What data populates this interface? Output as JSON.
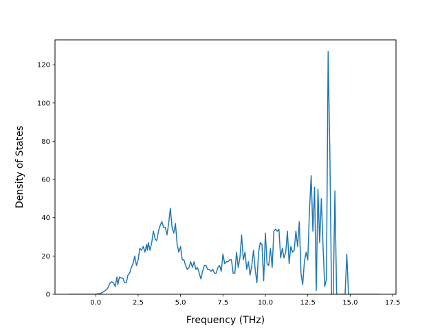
{
  "chart_data": {
    "type": "line",
    "title": "",
    "xlabel": "Frequency (THz)",
    "ylabel": "Density of States",
    "xlim": [
      -2.4,
      17.7
    ],
    "ylim": [
      0,
      133
    ],
    "xticks": [
      0.0,
      2.5,
      5.0,
      7.5,
      10.0,
      12.5,
      15.0,
      17.5
    ],
    "xtick_labels": [
      "0.0",
      "2.5",
      "5.0",
      "7.5",
      "10.0",
      "12.5",
      "15.0",
      "17.5"
    ],
    "yticks": [
      0,
      20,
      40,
      60,
      80,
      100,
      120
    ],
    "ytick_labels": [
      "0",
      "20",
      "40",
      "60",
      "80",
      "100",
      "120"
    ],
    "grid": false,
    "legend": "none",
    "color": "#1f77b4",
    "series": [
      {
        "x": [
          -1.55,
          -1.0,
          -0.5,
          0.0,
          0.3,
          0.5,
          0.7,
          0.85,
          0.95,
          1.05,
          1.15,
          1.25,
          1.3,
          1.4,
          1.5,
          1.6,
          1.7,
          1.8,
          1.9,
          2.0,
          2.1,
          2.2,
          2.3,
          2.4,
          2.5,
          2.6,
          2.7,
          2.8,
          2.9,
          3.0,
          3.05,
          3.1,
          3.2,
          3.3,
          3.4,
          3.5,
          3.6,
          3.7,
          3.8,
          3.9,
          4.0,
          4.1,
          4.2,
          4.3,
          4.4,
          4.5,
          4.6,
          4.7,
          4.8,
          4.9,
          5.0,
          5.1,
          5.2,
          5.3,
          5.4,
          5.5,
          5.6,
          5.7,
          5.8,
          5.9,
          6.0,
          6.1,
          6.2,
          6.3,
          6.4,
          6.5,
          6.6,
          6.7,
          6.8,
          6.9,
          7.0,
          7.1,
          7.2,
          7.3,
          7.4,
          7.5,
          7.6,
          7.7,
          7.8,
          7.9,
          8.0,
          8.1,
          8.2,
          8.3,
          8.4,
          8.5,
          8.6,
          8.7,
          8.8,
          8.9,
          9.0,
          9.1,
          9.2,
          9.3,
          9.4,
          9.5,
          9.6,
          9.7,
          9.8,
          9.9,
          10.0,
          10.1,
          10.2,
          10.3,
          10.4,
          10.5,
          10.6,
          10.7,
          10.8,
          10.9,
          11.0,
          11.1,
          11.2,
          11.3,
          11.4,
          11.5,
          11.6,
          11.7,
          11.8,
          11.9,
          12.0,
          12.1,
          12.2,
          12.3,
          12.4,
          12.5,
          12.6,
          12.7,
          12.8,
          12.9,
          13.0,
          13.1,
          13.2,
          13.3,
          13.4,
          13.5,
          13.6,
          13.7,
          13.8,
          13.9,
          14.0,
          14.1,
          14.2,
          14.3,
          14.4,
          14.5,
          14.6,
          14.7,
          14.8,
          14.9,
          15.0,
          15.5,
          16.0,
          16.7
        ],
        "y": [
          0,
          0,
          0,
          0,
          0.5,
          1.5,
          3,
          6,
          6.5,
          6,
          4,
          9,
          5,
          9,
          8.5,
          8.5,
          6,
          6,
          10,
          11,
          14,
          16,
          20,
          15,
          18,
          24,
          23,
          25,
          22,
          26,
          23,
          27,
          23,
          27,
          33,
          29,
          28,
          33,
          36,
          38,
          35,
          35,
          31,
          37,
          45,
          35,
          32,
          37,
          26,
          22,
          25,
          18,
          18,
          15,
          13,
          14,
          17,
          14,
          17,
          13,
          14,
          11,
          8,
          12,
          15,
          15,
          13,
          13,
          12,
          13,
          11,
          11,
          14,
          15,
          12,
          21,
          16,
          17,
          17,
          18,
          18,
          11,
          11,
          22,
          14,
          19,
          31,
          18,
          22,
          13,
          17,
          10,
          15,
          23,
          13,
          6,
          22,
          27,
          26,
          7,
          32,
          16,
          15,
          24,
          14,
          33,
          34,
          33,
          34,
          19,
          24,
          19,
          22,
          33,
          16,
          25,
          22,
          23,
          33,
          25,
          38,
          11,
          5,
          17,
          22,
          18,
          44,
          62,
          33,
          56,
          2,
          55,
          27,
          50,
          25,
          4,
          8,
          127,
          75,
          0,
          0,
          54,
          0,
          0,
          0,
          0,
          0,
          0,
          21,
          0,
          0,
          0,
          0,
          0
        ]
      }
    ]
  }
}
